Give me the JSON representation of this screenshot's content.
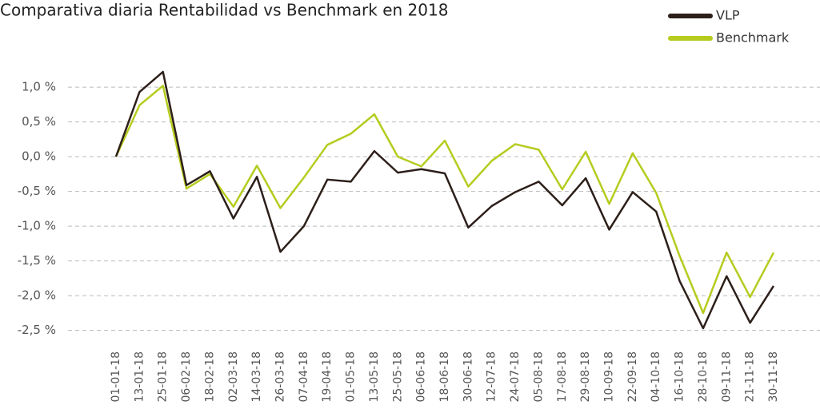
{
  "chart_data": {
    "type": "line",
    "title": "Comparativa diaria Rentabilidad vs Benchmark en 2018",
    "categories": [
      "01-01-18",
      "13-01-18",
      "25-01-18",
      "06-02-18",
      "18-02-18",
      "02-03-18",
      "14-03-18",
      "26-03-18",
      "07-04-18",
      "19-04-18",
      "01-05-18",
      "13-05-18",
      "25-05-18",
      "06-06-18",
      "18-06-18",
      "30-06-18",
      "12-07-18",
      "24-07-18",
      "05-08-18",
      "17-08-18",
      "29-08-18",
      "10-09-18",
      "22-09-18",
      "04-10-18",
      "16-10-18",
      "28-10-18",
      "09-11-18",
      "21-11-18",
      "30-11-18"
    ],
    "series": [
      {
        "name": "VLP",
        "color": "#2d1f1a",
        "values": [
          0,
          0.93,
          1.22,
          -0.41,
          -0.21,
          -0.89,
          -0.29,
          -1.37,
          -1.0,
          -0.33,
          -0.36,
          0.08,
          -0.23,
          -0.18,
          -0.24,
          -1.02,
          -0.71,
          -0.51,
          -0.36,
          -0.7,
          -0.31,
          -1.05,
          -0.51,
          -0.79,
          -1.79,
          -2.47,
          -1.72,
          -2.39,
          -1.86
        ]
      },
      {
        "name": "Benchmark",
        "color": "#b5cc1e",
        "values": [
          0,
          0.74,
          1.02,
          -0.46,
          -0.25,
          -0.72,
          -0.13,
          -0.74,
          -0.3,
          0.17,
          0.33,
          0.61,
          0,
          -0.14,
          0.23,
          -0.43,
          -0.06,
          0.18,
          0.1,
          -0.47,
          0.07,
          -0.68,
          0.05,
          -0.52,
          -1.43,
          -2.25,
          -1.38,
          -2.02,
          -1.38
        ]
      }
    ],
    "ylim": [
      -2.7,
      1.3
    ],
    "yticks": [
      {
        "value": 1,
        "label": "1,0 %"
      },
      {
        "value": 0.5,
        "label": "0,5 %"
      },
      {
        "value": 0,
        "label": "0,0 %"
      },
      {
        "value": -0.5,
        "label": "-0,5 %"
      },
      {
        "value": -1,
        "label": "-1,0 %"
      },
      {
        "value": -1.5,
        "label": "-1,5 %"
      },
      {
        "value": -2,
        "label": "-2,0 %"
      },
      {
        "value": -2.5,
        "label": "-2,5 %"
      }
    ],
    "grid": true,
    "legend": "top-right"
  }
}
